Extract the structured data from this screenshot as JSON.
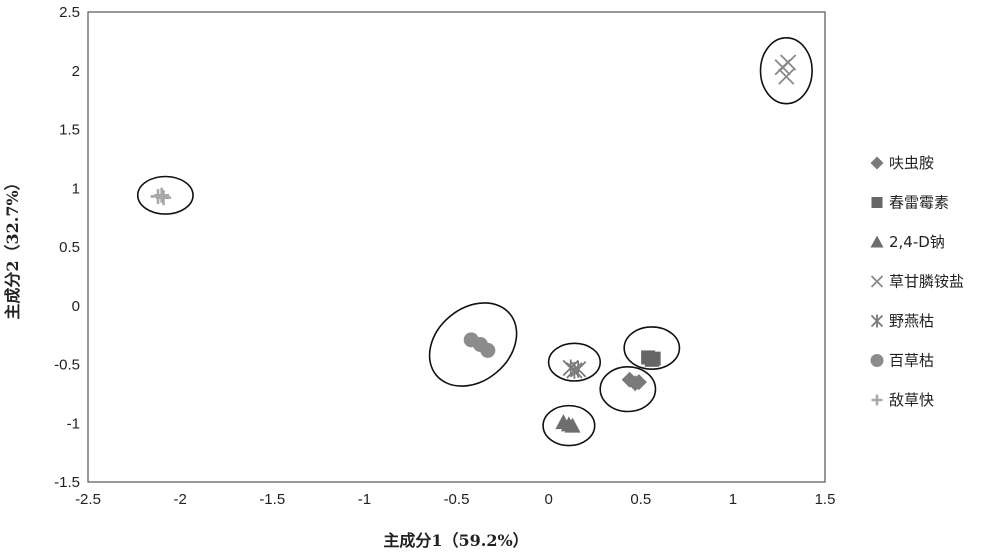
{
  "chart_data": {
    "type": "scatter",
    "title": "",
    "xlabel": "主成分1（59.2%）",
    "ylabel": "主成分2（32.7%）",
    "xlim": [
      -2.5,
      1.5
    ],
    "ylim": [
      -1.5,
      2.5
    ],
    "x_ticks": [
      "-2.5",
      "-2",
      "-1.5",
      "-1",
      "-0.5",
      "0",
      "0.5",
      "1",
      "1.5"
    ],
    "y_ticks": [
      "2.5",
      "2",
      "1.5",
      "1",
      "0.5",
      "0",
      "-0.5",
      "-1",
      "-1.5"
    ],
    "grid": false,
    "legend_position": "right",
    "series": [
      {
        "name": "呋虫胺",
        "marker": "diamond",
        "color": "#7a7a7a",
        "points": [
          [
            0.44,
            -0.63
          ],
          [
            0.47,
            -0.66
          ],
          [
            0.49,
            -0.65
          ]
        ]
      },
      {
        "name": "春雷霉素",
        "marker": "square",
        "color": "#666666",
        "points": [
          [
            0.54,
            -0.44
          ],
          [
            0.56,
            -0.46
          ],
          [
            0.57,
            -0.45
          ]
        ]
      },
      {
        "name": "2,4-D钠",
        "marker": "triangle",
        "color": "#6e6e6e",
        "points": [
          [
            0.08,
            -0.99
          ],
          [
            0.11,
            -1.01
          ],
          [
            0.13,
            -1.02
          ]
        ]
      },
      {
        "name": "草甘膦铵盐",
        "marker": "x",
        "color": "#8a8a8a",
        "points": [
          [
            1.27,
            2.03
          ],
          [
            1.29,
            1.95
          ],
          [
            1.3,
            2.07
          ]
        ]
      },
      {
        "name": "野燕枯",
        "marker": "asterisk",
        "color": "#7a7a7a",
        "points": [
          [
            0.12,
            -0.53
          ],
          [
            0.14,
            -0.55
          ],
          [
            0.16,
            -0.54
          ]
        ]
      },
      {
        "name": "百草枯",
        "marker": "circle",
        "color": "#8c8c8c",
        "points": [
          [
            -0.42,
            -0.29
          ],
          [
            -0.37,
            -0.33
          ],
          [
            -0.33,
            -0.38
          ]
        ]
      },
      {
        "name": "敌草快",
        "marker": "plus",
        "color": "#a8a8a8",
        "points": [
          [
            -2.12,
            0.93
          ],
          [
            -2.1,
            0.94
          ],
          [
            -2.09,
            0.92
          ]
        ]
      }
    ],
    "clusters": [
      {
        "series": "草甘膦铵盐",
        "cx": 1.29,
        "cy": 2.0,
        "rx": 0.14,
        "ry": 0.28,
        "rot": 0
      },
      {
        "series": "敌草快",
        "cx": -2.08,
        "cy": 0.94,
        "rx": 0.15,
        "ry": 0.16,
        "rot": 0
      },
      {
        "series": "百草枯",
        "cx": -0.41,
        "cy": -0.33,
        "rx": 0.26,
        "ry": 0.31,
        "rot": -40
      },
      {
        "series": "春雷霉素",
        "cx": 0.56,
        "cy": -0.36,
        "rx": 0.15,
        "ry": 0.18,
        "rot": 0
      },
      {
        "series": "野燕枯",
        "cx": 0.14,
        "cy": -0.48,
        "rx": 0.14,
        "ry": 0.16,
        "rot": 0
      },
      {
        "series": "呋虫胺",
        "cx": 0.43,
        "cy": -0.71,
        "rx": 0.15,
        "ry": 0.19,
        "rot": 0
      },
      {
        "series": "2,4-D钠",
        "cx": 0.11,
        "cy": -1.02,
        "rx": 0.14,
        "ry": 0.17,
        "rot": 0
      }
    ]
  }
}
